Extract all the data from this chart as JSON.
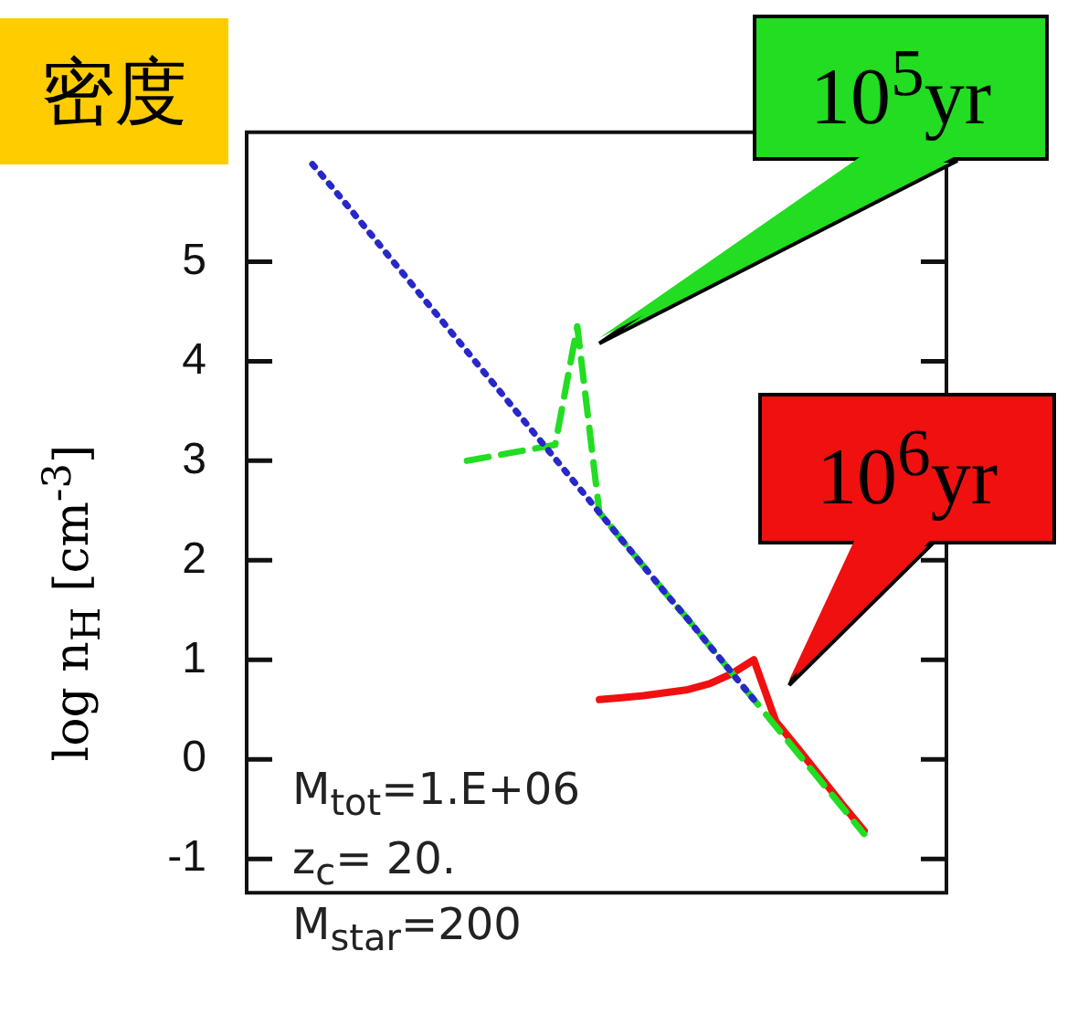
{
  "chart_data": {
    "type": "line",
    "title": "密度",
    "ylabel": "log n$_{H}$ [cm$^{-3}$]",
    "categories": [
      null,
      null,
      null,
      null,
      null,
      null,
      null,
      null,
      null,
      null,
      null,
      null,
      null,
      null,
      null,
      null,
      null,
      null,
      null,
      null,
      null,
      null,
      null,
      null,
      null,
      null
    ],
    "series": [
      {
        "color": "#2828c8",
        "line_style": "dotted",
        "values": [
          5.98,
          5.72,
          5.45,
          5.18,
          4.91,
          4.64,
          4.37,
          4.1,
          3.83,
          3.56,
          3.29,
          3.02,
          2.75,
          2.48,
          2.21,
          1.94,
          1.67,
          1.41,
          1.14,
          0.87,
          0.6,
          null,
          null,
          null,
          null,
          null
        ]
      },
      {
        "name": "10$^{5}$yr",
        "color": "#22dd22",
        "line_style": "dashed",
        "values": [
          null,
          null,
          null,
          null,
          null,
          null,
          null,
          3.0,
          3.04,
          3.08,
          3.12,
          3.16,
          4.35,
          2.48,
          2.21,
          1.94,
          1.67,
          1.41,
          1.14,
          0.87,
          0.6,
          0.33,
          0.06,
          -0.21,
          -0.48,
          -0.75
        ]
      },
      {
        "name": "10$^{6}$yr",
        "color": "#f01010",
        "line_style": "solid",
        "values": [
          null,
          null,
          null,
          null,
          null,
          null,
          null,
          null,
          null,
          null,
          null,
          null,
          null,
          0.6,
          0.62,
          0.64,
          0.67,
          0.7,
          0.76,
          0.86,
          1.0,
          0.38,
          0.11,
          -0.17,
          -0.45,
          -0.72
        ]
      }
    ],
    "ylim": [
      -1.34,
      6.3
    ],
    "yticks": [
      -1,
      0,
      1,
      2,
      3,
      4,
      5
    ],
    "grid": false,
    "legend": false,
    "marker": "none",
    "annotations": [
      "M$_{tot}$=1.E+06",
      "z$_{c}$= 20.",
      "M$_{star}$=200"
    ]
  }
}
